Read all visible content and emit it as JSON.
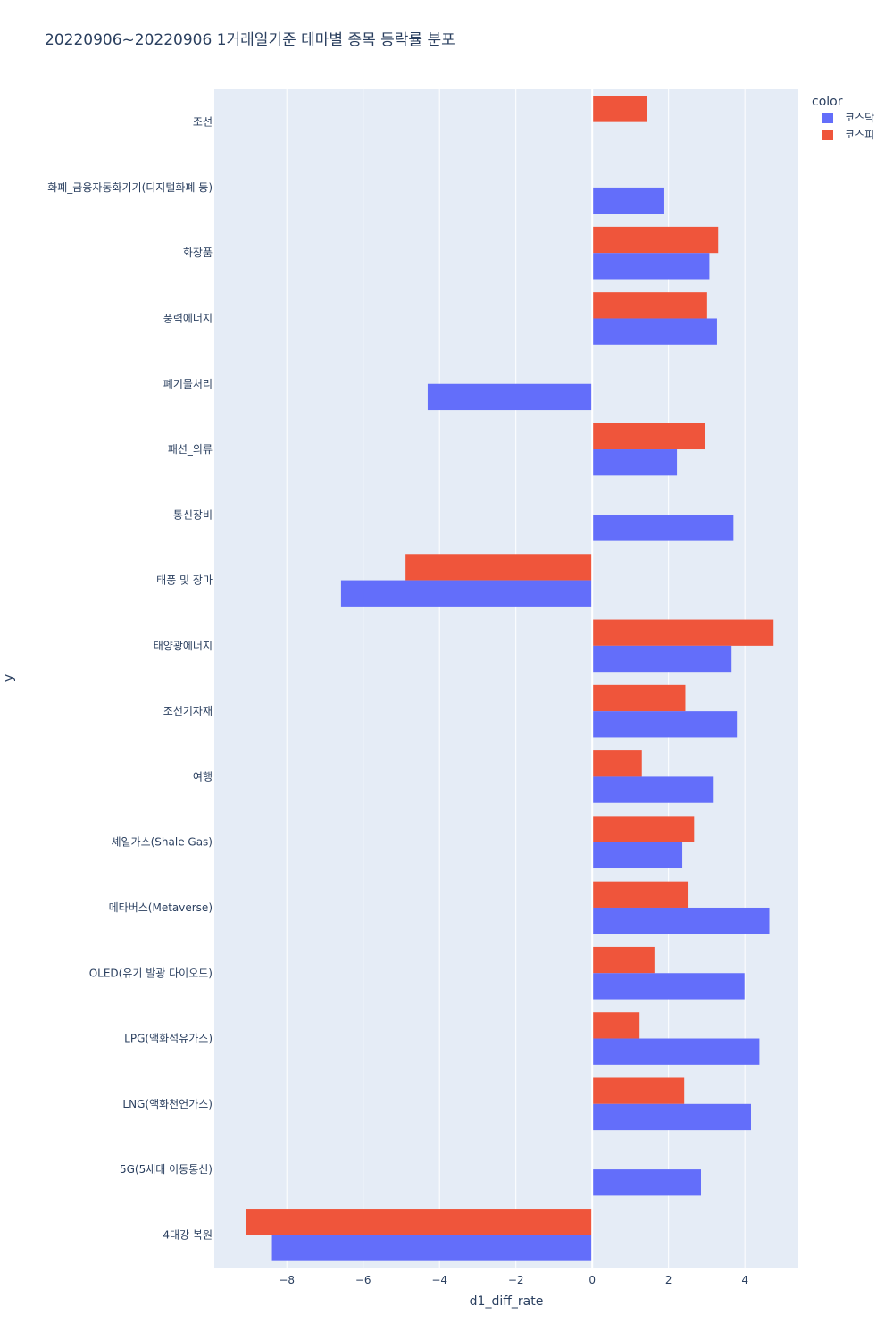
{
  "chart_data": {
    "type": "bar",
    "orientation": "horizontal",
    "barmode": "group",
    "title": "20220906~20220906 1거래일기준 테마별 종목 등락률 분포",
    "xlabel": "d1_diff_rate",
    "ylabel": "y",
    "xlim": [
      -9.9,
      5.4
    ],
    "x_ticks": [
      -8,
      -6,
      -4,
      -2,
      0,
      2,
      4
    ],
    "x_tick_labels": [
      "−8",
      "−6",
      "−4",
      "−2",
      "0",
      "2",
      "4"
    ],
    "grid": true,
    "legend": {
      "title": "color",
      "position": "top-right"
    },
    "categories": [
      "조선",
      "화폐_금융자동화기기(디지털화폐 등)",
      "화장품",
      "풍력에너지",
      "폐기물처리",
      "패션_의류",
      "통신장비",
      "태풍 및 장마",
      "태양광에너지",
      "조선기자재",
      "여행",
      "셰일가스(Shale Gas)",
      "메타버스(Metaverse)",
      "OLED(유기 발광 다이오드)",
      "LPG(액화석유가스)",
      "LNG(액화천연가스)",
      "5G(5세대 이동통신)",
      "4대강 복원"
    ],
    "series": [
      {
        "name": "코스닥",
        "color": "#636efa",
        "values": [
          null,
          1.89,
          3.07,
          3.27,
          -4.31,
          2.22,
          3.7,
          -6.58,
          3.65,
          3.79,
          3.16,
          2.36,
          4.64,
          3.99,
          4.38,
          4.16,
          2.85,
          -8.39
        ]
      },
      {
        "name": "코스피",
        "color": "#ef553b",
        "values": [
          1.43,
          null,
          3.3,
          3.01,
          null,
          2.96,
          null,
          -4.89,
          4.75,
          2.44,
          1.3,
          2.67,
          2.5,
          1.63,
          1.24,
          2.41,
          null,
          -9.06
        ]
      }
    ]
  }
}
